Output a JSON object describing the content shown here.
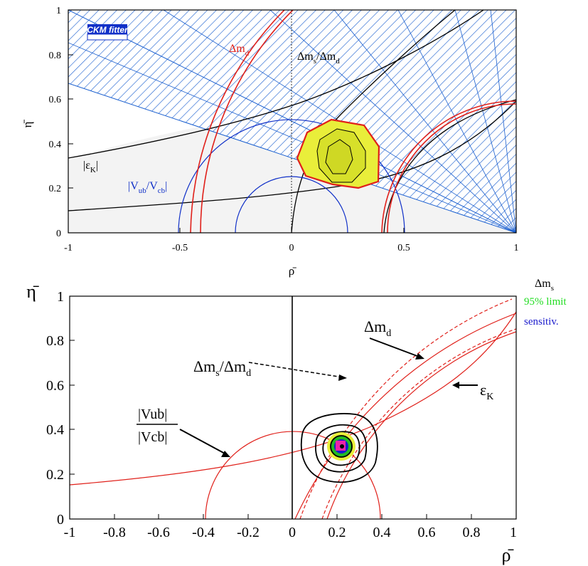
{
  "chart_data": [
    {
      "type": "scatter",
      "title": "",
      "xlabel": "ρ̄",
      "ylabel": "η̄",
      "xlim": [
        -1,
        1
      ],
      "ylim": [
        0,
        1
      ],
      "x_ticks": [
        "-1",
        "-0.5",
        "0",
        "0.5",
        "1"
      ],
      "y_ticks": [
        "0",
        "0.2",
        "0.4",
        "0.6",
        "0.8",
        "1"
      ],
      "logo": "CKM fitter",
      "annotations": {
        "dmd": "Δm",
        "dmd_sub": "d",
        "ratio_a": "Δm",
        "ratio_a_sub": "s",
        "ratio_b": "/Δm",
        "ratio_b_sub": "d",
        "epsk_open": "|ε",
        "epsk_sub": "K",
        "epsk_close": "|",
        "vub_a": "|V",
        "vub_a_sub": "ub",
        "vub_b": "/V",
        "vub_b_sub": "cb",
        "vub_close": "|"
      },
      "best_fit": {
        "rho": 0.2,
        "eta": 0.34
      },
      "colors": {
        "hatch": "#1a5fd0",
        "dmd": "#e0201a",
        "vub": "#1030c8",
        "fill_region": "#e9ee3a",
        "grey": "#f3f3f3"
      }
    },
    {
      "type": "scatter",
      "title": "",
      "xlabel": "ρ̄",
      "ylabel": "η̄",
      "xlim": [
        -1,
        1
      ],
      "ylim": [
        0,
        1
      ],
      "x_ticks": [
        "-1",
        "-0.8",
        "-0.6",
        "-0.4",
        "-0.2",
        "0",
        "0.2",
        "0.4",
        "0.6",
        "0.8",
        "1"
      ],
      "y_ticks": [
        "0",
        "0.2",
        "0.4",
        "0.6",
        "0.8",
        "1"
      ],
      "annotations": {
        "dmd": "Δm",
        "dmd_sub": "d",
        "ratio_a": "Δm",
        "ratio_a_sub": "s",
        "ratio_b": "/Δm",
        "ratio_b_sub": "d",
        "epsk": "ε",
        "epsk_sub": "K",
        "vub_num": "|Vub|",
        "vub_den": "|Vcb|"
      },
      "legend": {
        "title": "Δm",
        "title_sub": "s",
        "items": [
          {
            "label": "95% limit",
            "color": "#22dd22"
          },
          {
            "label": "sensitiv.",
            "color": "#1a1acc"
          }
        ]
      },
      "best_fit": {
        "rho": 0.22,
        "eta": 0.32
      },
      "colors": {
        "curves": "#e0201a"
      }
    }
  ]
}
